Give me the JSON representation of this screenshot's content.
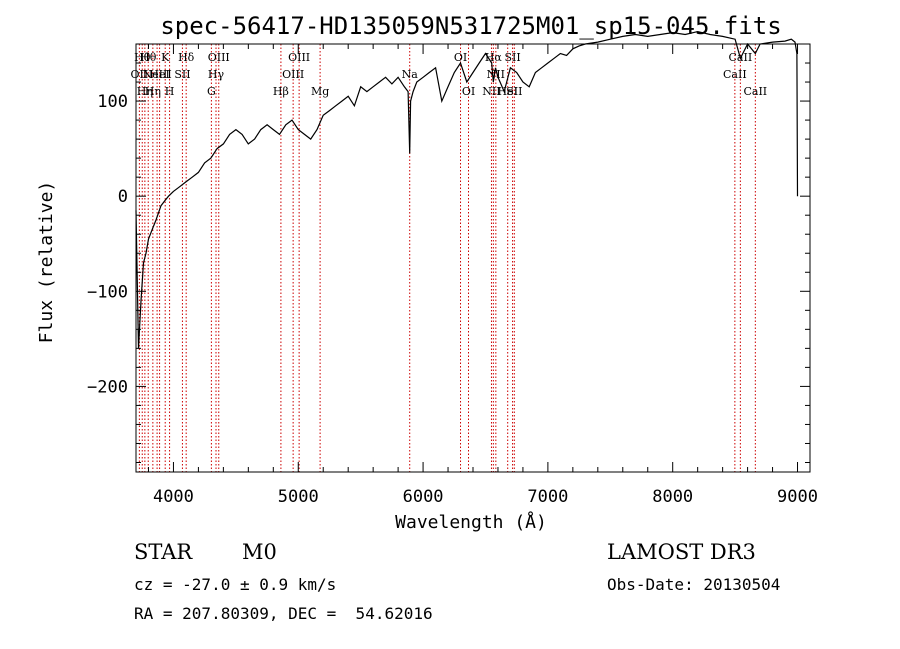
{
  "chart_data": {
    "type": "line",
    "title": "spec-56417-HD135059N531725M01_sp15-045.fits",
    "xlabel": "Wavelength (Å)",
    "ylabel": "Flux (relative)",
    "xlim": [
      3700,
      9100
    ],
    "ylim": [
      -290,
      160
    ],
    "x_ticks": [
      4000,
      5000,
      6000,
      7000,
      8000,
      9000
    ],
    "y_ticks": [
      -200,
      -100,
      0,
      100
    ],
    "grid": false,
    "series": [
      {
        "x": [
          3700,
          3720,
          3740,
          3760,
          3780,
          3800,
          3830,
          3860,
          3900,
          3930,
          3960,
          4000,
          4050,
          4100,
          4150,
          4200,
          4250,
          4300,
          4350,
          4400,
          4450,
          4500,
          4550,
          4600,
          4650,
          4700,
          4750,
          4800,
          4850,
          4900,
          4950,
          5000,
          5050,
          5100,
          5150,
          5200,
          5250,
          5300,
          5350,
          5400,
          5450,
          5500,
          5550,
          5600,
          5650,
          5700,
          5750,
          5800,
          5850,
          5880,
          5893,
          5900,
          5920,
          5950,
          6000,
          6050,
          6100,
          6150,
          6200,
          6250,
          6300,
          6350,
          6400,
          6450,
          6500,
          6550,
          6563,
          6580,
          6600,
          6650,
          6700,
          6750,
          6800,
          6850,
          6900,
          6950,
          7000,
          7050,
          7100,
          7150,
          7200,
          7250,
          7300,
          7400,
          7500,
          7600,
          7700,
          7800,
          7900,
          8000,
          8100,
          8200,
          8300,
          8400,
          8500,
          8542,
          8600,
          8662,
          8700,
          8800,
          8900,
          8950,
          8980,
          8995,
          9000
        ],
        "y": [
          -15,
          -160,
          -110,
          -70,
          -60,
          -45,
          -35,
          -25,
          -10,
          -5,
          0,
          5,
          10,
          15,
          20,
          25,
          35,
          40,
          50,
          55,
          65,
          70,
          65,
          55,
          60,
          70,
          75,
          70,
          65,
          75,
          80,
          70,
          65,
          60,
          70,
          85,
          90,
          95,
          100,
          105,
          95,
          115,
          110,
          115,
          120,
          125,
          118,
          125,
          115,
          110,
          45,
          100,
          110,
          120,
          125,
          130,
          135,
          100,
          115,
          130,
          140,
          120,
          130,
          140,
          150,
          140,
          120,
          135,
          125,
          110,
          135,
          130,
          120,
          115,
          130,
          135,
          140,
          145,
          150,
          148,
          155,
          158,
          160,
          162,
          165,
          168,
          170,
          168,
          170,
          172,
          170,
          173,
          170,
          168,
          165,
          145,
          160,
          150,
          160,
          162,
          163,
          165,
          162,
          150,
          0
        ]
      }
    ],
    "line_markers": [
      {
        "wavelength": 3727,
        "label": "OII",
        "row": 1
      },
      {
        "wavelength": 3750,
        "label": "Hθ",
        "row": 0
      },
      {
        "wavelength": 3771,
        "label": "Hη",
        "row": 2
      },
      {
        "wavelength": 3798,
        "label": "Hθ",
        "row": 0
      },
      {
        "wavelength": 3835,
        "label": "Hη",
        "row": 2
      },
      {
        "wavelength": 3869,
        "label": "NeIII",
        "row": 1
      },
      {
        "wavelength": 3889,
        "label": "HeI",
        "row": 1
      },
      {
        "wavelength": 3934,
        "label": "K",
        "row": 0
      },
      {
        "wavelength": 3969,
        "label": "H",
        "row": 2
      },
      {
        "wavelength": 4072,
        "label": "SII",
        "row": 1
      },
      {
        "wavelength": 4102,
        "label": "Hδ",
        "row": 0
      },
      {
        "wavelength": 4304,
        "label": "G",
        "row": 2
      },
      {
        "wavelength": 4341,
        "label": "Hγ",
        "row": 1
      },
      {
        "wavelength": 4363,
        "label": "OIII",
        "row": 0
      },
      {
        "wavelength": 4861,
        "label": "Hβ",
        "row": 2
      },
      {
        "wavelength": 4959,
        "label": "OIII",
        "row": 1
      },
      {
        "wavelength": 5007,
        "label": "OIII",
        "row": 0
      },
      {
        "wavelength": 5175,
        "label": "Mg",
        "row": 2
      },
      {
        "wavelength": 5893,
        "label": "Na",
        "row": 1
      },
      {
        "wavelength": 6300,
        "label": "OI",
        "row": 0
      },
      {
        "wavelength": 6364,
        "label": "OI",
        "row": 2
      },
      {
        "wavelength": 6548,
        "label": "NII",
        "row": 2
      },
      {
        "wavelength": 6563,
        "label": "Hα",
        "row": 0
      },
      {
        "wavelength": 6583,
        "label": "NII",
        "row": 1
      },
      {
        "wavelength": 6678,
        "label": "HeI",
        "row": 2
      },
      {
        "wavelength": 6717,
        "label": "SII",
        "row": 0
      },
      {
        "wavelength": 6731,
        "label": "SII",
        "row": 2
      },
      {
        "wavelength": 8498,
        "label": "CaII",
        "row": 1
      },
      {
        "wavelength": 8542,
        "label": "CaII",
        "row": 0
      },
      {
        "wavelength": 8662,
        "label": "CaII",
        "row": 2
      }
    ]
  },
  "info": {
    "object_class": "STAR",
    "subclass": "M0",
    "redshift": "cz = -27.0 ± 0.9 km/s",
    "coords": "RA = 207.80309, DEC =  54.62016",
    "survey": "LAMOST DR3",
    "obs_date": "Obs-Date: 20130504"
  },
  "colors": {
    "spectrum": "#000000",
    "line_markers": "#cc0000",
    "axes": "#000000",
    "background": "#ffffff"
  }
}
